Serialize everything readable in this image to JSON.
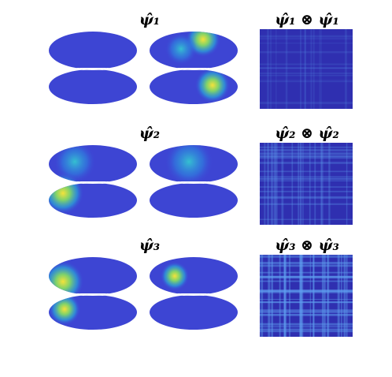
{
  "rows": [
    {
      "label": "ψ̂₁",
      "matrix_label": "ψ̂₁ ⊗ ψ̂₁"
    },
    {
      "label": "ψ̂₂",
      "matrix_label": "ψ̂₂ ⊗ ψ̂₂"
    },
    {
      "label": "ψ̂₃",
      "matrix_label": "ψ̂₃ ⊗ ψ̂₃"
    }
  ]
}
